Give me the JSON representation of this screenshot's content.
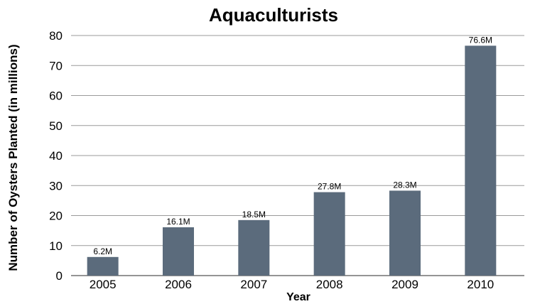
{
  "chart_data": {
    "type": "bar",
    "title": "Aquaculturists",
    "xlabel": "Year",
    "ylabel": "Number of Oysters Planted (in millions)",
    "categories": [
      "2005",
      "2006",
      "2007",
      "2008",
      "2009",
      "2010"
    ],
    "values": [
      6.2,
      16.1,
      18.5,
      27.8,
      28.3,
      76.6
    ],
    "data_labels": [
      "6.2M",
      "16.1M",
      "18.5M",
      "27.8M",
      "28.3M",
      "76.6M"
    ],
    "ylim": [
      0,
      80
    ],
    "yticks": [
      "0",
      "10",
      "20",
      "30",
      "40",
      "50",
      "60",
      "70",
      "80"
    ],
    "grid": true,
    "legend": "none",
    "bar_color": "#5b6b7c"
  }
}
